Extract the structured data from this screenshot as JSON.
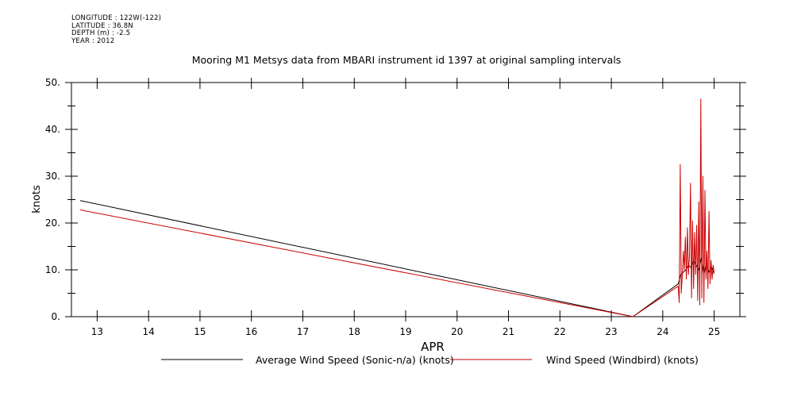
{
  "header": {
    "meta": [
      "LONGITUDE : 122W(-122)",
      "LATITUDE : 36.8N",
      "DEPTH (m) : -2.5",
      "YEAR : 2012"
    ]
  },
  "chart_data": {
    "type": "line",
    "title": "Mooring M1 Metsys data from MBARI instrument id 1397 at original sampling intervals",
    "xlabel": "APR",
    "ylabel": "knots",
    "xlim": [
      12.5,
      25.5
    ],
    "ylim": [
      0,
      50
    ],
    "x_ticks": [
      13,
      14,
      15,
      16,
      17,
      18,
      19,
      20,
      21,
      22,
      23,
      24,
      25
    ],
    "x_tick_labels": [
      "13",
      "14",
      "15",
      "16",
      "17",
      "18",
      "19",
      "20",
      "21",
      "22",
      "23",
      "24",
      "25"
    ],
    "y_ticks": [
      0,
      10,
      20,
      30,
      40,
      50
    ],
    "y_tick_labels": [
      "0.",
      "10.",
      "20.",
      "30.",
      "40.",
      "50."
    ],
    "y_minor_step": 5,
    "grid": false,
    "legend_position": "bottom",
    "series": [
      {
        "name": "Average Wind Speed (Sonic-n/a) (knots)",
        "color": "#000000",
        "x": [
          12.67,
          23.42,
          24.3,
          24.35,
          24.4,
          24.45,
          24.5,
          24.55,
          24.6,
          24.65,
          24.7,
          24.75,
          24.8,
          24.85,
          24.9,
          24.95,
          25.0
        ],
        "y": [
          24.8,
          0.0,
          7.0,
          9.0,
          9.5,
          10.0,
          11.0,
          10.5,
          12.0,
          11.0,
          10.0,
          12.5,
          9.0,
          11.5,
          9.5,
          10.5,
          9.2
        ]
      },
      {
        "name": "Wind Speed (Windbird) (knots)",
        "color": "#cc0000",
        "x": [
          12.67,
          23.42,
          24.3,
          24.32,
          24.34,
          24.36,
          24.38,
          24.4,
          24.42,
          24.44,
          24.46,
          24.48,
          24.5,
          24.52,
          24.54,
          24.56,
          24.58,
          24.6,
          24.62,
          24.64,
          24.66,
          24.68,
          24.7,
          24.72,
          24.74,
          24.76,
          24.78,
          24.8,
          24.82,
          24.84,
          24.86,
          24.88,
          24.9,
          24.92,
          24.94,
          24.96,
          24.98,
          25.0
        ],
        "y": [
          22.8,
          0.0,
          6.5,
          3.0,
          32.5,
          5.0,
          9.0,
          14.0,
          10.0,
          17.0,
          8.0,
          19.0,
          9.0,
          13.0,
          28.5,
          4.0,
          20.5,
          6.0,
          18.0,
          9.0,
          19.5,
          3.5,
          24.5,
          2.5,
          46.5,
          4.0,
          30.0,
          3.0,
          27.0,
          8.0,
          14.0,
          6.0,
          22.5,
          7.0,
          12.0,
          8.0,
          11.0,
          9.5
        ]
      }
    ]
  }
}
